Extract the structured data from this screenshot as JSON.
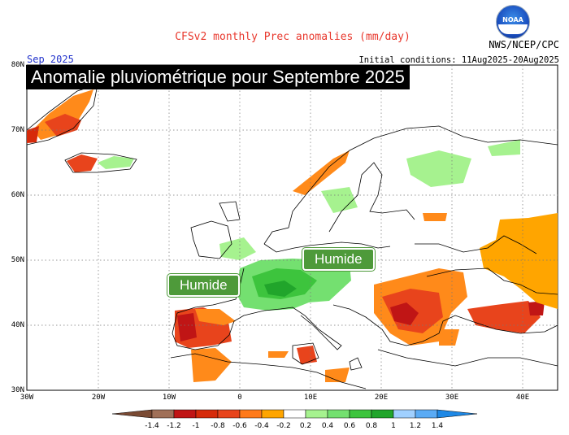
{
  "header": {
    "title": "CFSv2 monthly Prec anomalies (mm/day)",
    "valid_month": "Sep 2025",
    "initial_conditions": "Initial conditions: 11Aug2025-20Aug2025",
    "organization": "NWS/NCEP/CPC",
    "logo_text": "NOAA"
  },
  "overlay": {
    "title": "Anomalie pluviométrique pour Septembre 2025",
    "labels": [
      "Humide",
      "Humide"
    ]
  },
  "map": {
    "lat_labels": [
      "80N",
      "70N",
      "60N",
      "50N",
      "40N",
      "30N"
    ],
    "lon_labels": [
      "30W",
      "20W",
      "10W",
      "0",
      "10E",
      "20E",
      "30E",
      "40E"
    ],
    "extent": {
      "lon": [
        -30,
        45
      ],
      "lat": [
        30,
        80
      ]
    },
    "grid": "dotted"
  },
  "colorbar": {
    "labels": [
      "-1.4",
      "-1.2",
      "-1",
      "-0.8",
      "-0.6",
      "-0.4",
      "-0.2",
      "0.2",
      "0.4",
      "0.6",
      "0.8",
      "1",
      "1.2",
      "1.4"
    ],
    "colors": [
      "#7a4a33",
      "#a07058",
      "#c01515",
      "#d62a0a",
      "#e8441c",
      "#ff7a1a",
      "#ffa500",
      "#ffffff",
      "#a6f28f",
      "#74e070",
      "#3dc43d",
      "#21a52b",
      "#a0d0ff",
      "#5aabf5",
      "#1e88e5"
    ]
  }
}
